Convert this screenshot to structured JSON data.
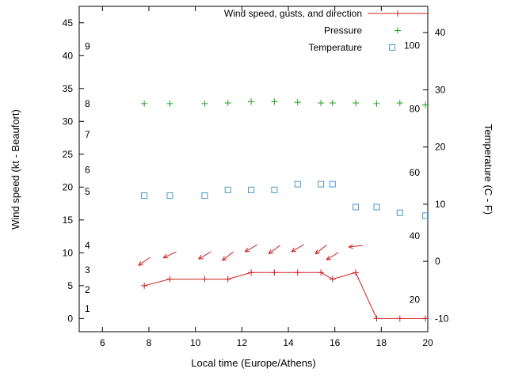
{
  "chart_data": {
    "type": "line",
    "title": "",
    "xlabel": "Local time (Europe/Athens)",
    "ylabel_left": "Wind speed (kt - Beaufort)",
    "ylabel_right": "Temperature (C - F)",
    "xlim": [
      5,
      20
    ],
    "x_ticks": [
      6,
      8,
      10,
      12,
      14,
      16,
      18,
      20
    ],
    "left_axis": {
      "lim": [
        -2,
        47.5
      ],
      "ticks": [
        0,
        5,
        10,
        15,
        20,
        25,
        30,
        35,
        40,
        45
      ]
    },
    "right_axis": {
      "lim_c": [
        -12.3,
        44.6
      ],
      "ticks_c": [
        -10,
        0,
        10,
        20,
        30,
        40
      ]
    },
    "beaufort_labels": [
      {
        "label": "1",
        "kt": 1.5
      },
      {
        "label": "2",
        "kt": 4.4
      },
      {
        "label": "3",
        "kt": 7.4
      },
      {
        "label": "4",
        "kt": 11.1
      },
      {
        "label": "5",
        "kt": 19.3
      },
      {
        "label": "6",
        "kt": 22.6
      },
      {
        "label": "7",
        "kt": 28.0
      },
      {
        "label": "8",
        "kt": 32.7
      },
      {
        "label": "9",
        "kt": 41.4
      }
    ],
    "fahrenheit_labels": [
      20,
      40,
      60,
      80,
      100
    ],
    "legend": {
      "position": "top-center",
      "entries": [
        {
          "label": "Wind speed, gusts, and direction",
          "series": "wind"
        },
        {
          "label": "Pressure",
          "series": "pressure"
        },
        {
          "label": "Temperature",
          "series": "temperature"
        }
      ]
    },
    "x": [
      7.8,
      8.9,
      10.4,
      11.4,
      12.4,
      13.4,
      14.4,
      15.4,
      15.9,
      16.9,
      17.8,
      18.8,
      19.9
    ],
    "series": [
      {
        "name": "wind",
        "axis": "left",
        "marker": "plus",
        "line": true,
        "color": "#cc2020",
        "values": [
          5,
          6,
          6,
          6,
          7,
          7,
          7,
          7,
          6,
          7,
          0,
          0,
          0
        ]
      },
      {
        "name": "pressure",
        "axis": "left",
        "marker": "plus",
        "line": false,
        "color": "#1ea31e",
        "values": [
          32.7,
          32.7,
          32.7,
          32.8,
          33.0,
          33.0,
          32.9,
          32.8,
          32.8,
          32.8,
          32.7,
          32.8,
          32.5
        ]
      },
      {
        "name": "temperature",
        "axis": "right",
        "marker": "square-open",
        "line": false,
        "color": "#4a94c8",
        "values": [
          11.5,
          11.5,
          11.5,
          12.5,
          12.5,
          12.5,
          13.5,
          13.5,
          13.5,
          9.5,
          9.5,
          8.5,
          8.0
        ]
      }
    ],
    "gust_vectors": [
      {
        "x": 7.8,
        "kt": 8.7,
        "angle": 215
      },
      {
        "x": 8.9,
        "kt": 9.7,
        "angle": 205
      },
      {
        "x": 10.4,
        "kt": 9.6,
        "angle": 210
      },
      {
        "x": 11.4,
        "kt": 9.5,
        "angle": 218
      },
      {
        "x": 12.4,
        "kt": 10.7,
        "angle": 210
      },
      {
        "x": 13.4,
        "kt": 10.5,
        "angle": 216
      },
      {
        "x": 14.4,
        "kt": 10.7,
        "angle": 210
      },
      {
        "x": 15.4,
        "kt": 10.5,
        "angle": 218
      },
      {
        "x": 15.9,
        "kt": 9.5,
        "angle": 212
      },
      {
        "x": 16.9,
        "kt": 11.0,
        "angle": 186
      }
    ],
    "colors": {
      "axis": "#000000",
      "background": "#ffffff"
    }
  }
}
